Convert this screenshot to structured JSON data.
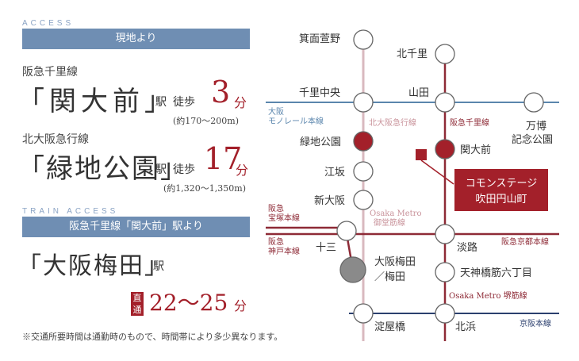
{
  "access": {
    "caption": "ACCESS",
    "bar_label": "現地より",
    "route1": {
      "line": "阪急千里線",
      "station": "「関大前」",
      "suffix": "駅",
      "walk": "徒歩",
      "minutes": "3",
      "unit": "分",
      "distance": "(約170〜200m)"
    },
    "route2": {
      "line": "北大阪急行線",
      "station": "「緑地公園」",
      "suffix": "駅",
      "walk": "徒歩",
      "minutes": "17",
      "unit": "分",
      "distance": "(約1,320〜1,350m)"
    }
  },
  "train_access": {
    "caption": "TRAIN ACCESS",
    "bar_label": "阪急千里線「関大前」駅より",
    "destination": "「大阪梅田」",
    "suffix": "駅",
    "direct": "直通",
    "time": "22〜25",
    "unit": "分"
  },
  "note": "※交通所要時間は通勤時のもので、時間帯により多少異なります。",
  "map": {
    "stations": {
      "minoh": "箕面萱野",
      "kitasenri": "北千里",
      "senri_chuo": "千里中央",
      "yamada": "山田",
      "banpaku1": "万博",
      "banpaku2": "記念公園",
      "ryokuchi": "緑地公園",
      "kandaimae": "関大前",
      "esaka": "江坂",
      "shinosaka": "新大阪",
      "juso": "十三",
      "awaji": "淡路",
      "umeda1": "大阪梅田",
      "umeda2": "／梅田",
      "tenroku": "天神橋筋六丁目",
      "yodoyabashi": "淀屋橋",
      "kitahama": "北浜"
    },
    "lines": {
      "monorail1": "大阪",
      "monorail2": "モノレール本線",
      "kitakyu": "北大阪急行線",
      "senri": "阪急千里線",
      "midosuji1": "Osaka Metro",
      "midosuji2": "御堂筋線",
      "takarazuka1": "阪急",
      "takarazuka2": "宝塚本線",
      "kobe1": "阪急",
      "kobe2": "神戸本線",
      "kyoto": "阪急京都本線",
      "sakaisuji": "Osaka Metro 堺筋線",
      "keihan": "京阪本線"
    },
    "property1": "コモンステージ",
    "property2": "吹田円山町",
    "colors": {
      "monorail": "#5b86ad",
      "senri": "#8e2a36",
      "midosuji": "#d9b9bf",
      "keihan": "#2b3f6e",
      "accent": "#a3202a"
    }
  }
}
